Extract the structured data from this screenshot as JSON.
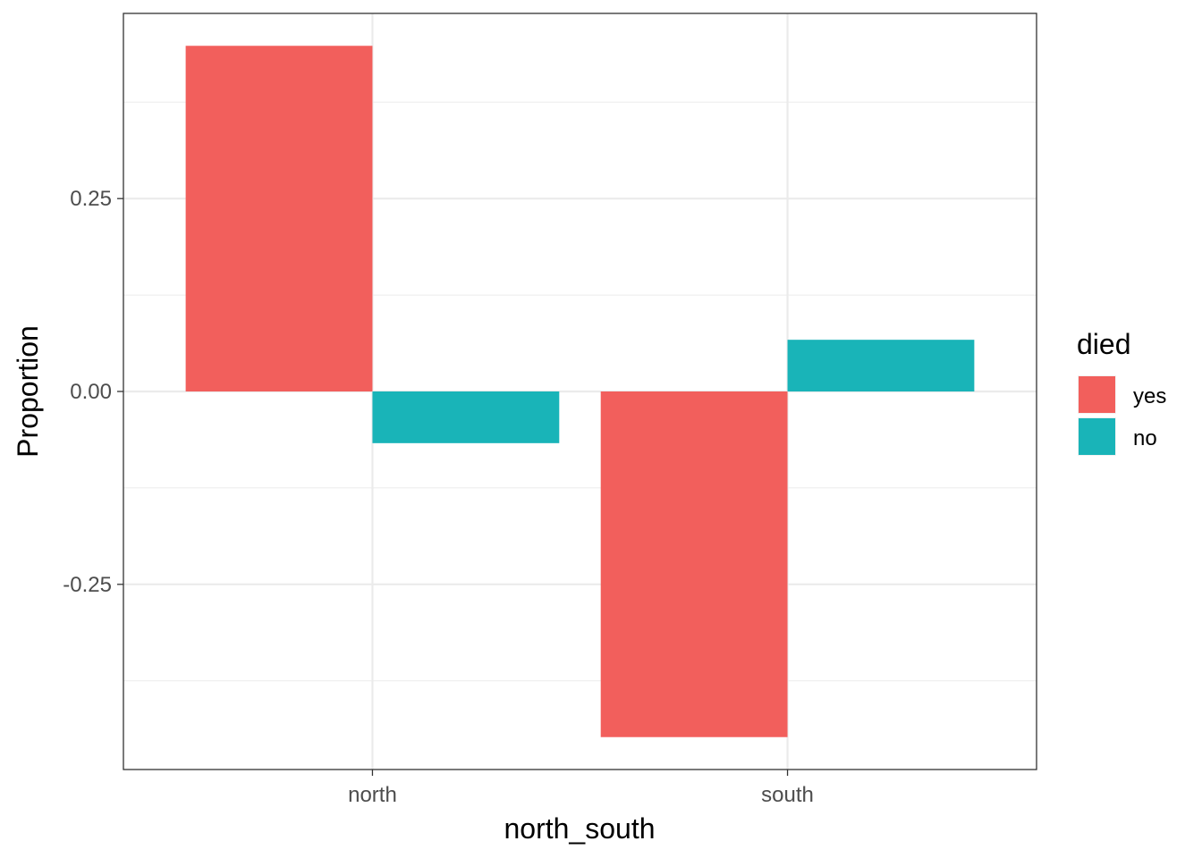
{
  "chart_data": {
    "type": "bar",
    "title": "",
    "xlabel": "north_south",
    "ylabel": "Proportion",
    "categories": [
      "north",
      "south"
    ],
    "series": [
      {
        "name": "yes",
        "color": "#F25F5C",
        "values": [
          0.448,
          -0.448
        ]
      },
      {
        "name": "no",
        "color": "#19B4B8",
        "values": [
          -0.067,
          0.067
        ]
      }
    ],
    "ylim": [
      -0.49,
      0.49
    ],
    "yticks": [
      -0.25,
      0.0,
      0.25
    ],
    "ytick_labels": [
      "-0.25",
      "0.00",
      "0.25"
    ],
    "grid": true,
    "legend": {
      "title": "died",
      "position": "right"
    }
  }
}
